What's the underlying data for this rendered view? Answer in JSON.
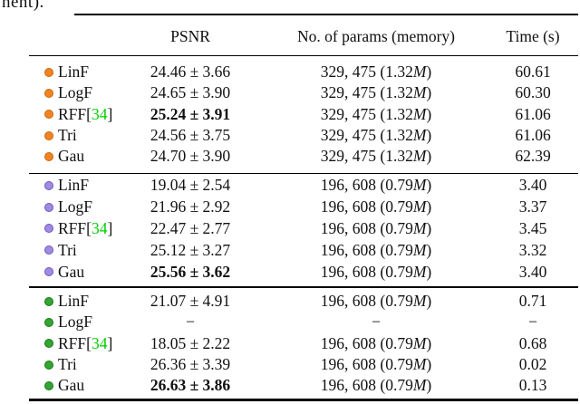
{
  "caption_fragment": "nent).",
  "table": {
    "headers": {
      "psnr": "PSNR",
      "params": "No. of params (memory)",
      "time": "Time (s)"
    },
    "groups": [
      {
        "marker": "orange-dot",
        "marker_fill": "#F28322",
        "marker_edge": "#C9670F",
        "rows": [
          {
            "label": "LinF",
            "cite": null,
            "psnr": "24.46 ± 3.66",
            "psnr_bold": false,
            "params": "329, 475 (1.32M)",
            "time": "60.61"
          },
          {
            "label": "LogF",
            "cite": null,
            "psnr": "24.65 ± 3.90",
            "psnr_bold": false,
            "params": "329, 475 (1.32M)",
            "time": "60.30"
          },
          {
            "label": "RFF",
            "cite": "34",
            "psnr": "25.24 ± 3.91",
            "psnr_bold": true,
            "params": "329, 475 (1.32M)",
            "time": "61.06"
          },
          {
            "label": "Tri",
            "cite": null,
            "psnr": "24.56 ± 3.75",
            "psnr_bold": false,
            "params": "329, 475 (1.32M)",
            "time": "61.06"
          },
          {
            "label": "Gau",
            "cite": null,
            "psnr": "24.70 ± 3.90",
            "psnr_bold": false,
            "params": "329, 475 (1.32M)",
            "time": "62.39"
          }
        ]
      },
      {
        "marker": "purple-dot",
        "marker_fill": "#A08BDE",
        "marker_edge": "#6F55C5",
        "rows": [
          {
            "label": "LinF",
            "cite": null,
            "psnr": "19.04 ± 2.54",
            "psnr_bold": false,
            "params": "196, 608 (0.79M)",
            "time": "3.40"
          },
          {
            "label": "LogF",
            "cite": null,
            "psnr": "21.96 ± 2.92",
            "psnr_bold": false,
            "params": "196, 608 (0.79M)",
            "time": "3.37"
          },
          {
            "label": "RFF",
            "cite": "34",
            "psnr": "22.47 ± 2.77",
            "psnr_bold": false,
            "params": "196, 608 (0.79M)",
            "time": "3.45"
          },
          {
            "label": "Tri",
            "cite": null,
            "psnr": "25.12 ± 3.27",
            "psnr_bold": false,
            "params": "196, 608 (0.79M)",
            "time": "3.32"
          },
          {
            "label": "Gau",
            "cite": null,
            "psnr": "25.56 ± 3.62",
            "psnr_bold": true,
            "params": "196, 608 (0.79M)",
            "time": "3.40"
          }
        ]
      },
      {
        "marker": "green-dot",
        "marker_fill": "#35A435",
        "marker_edge": "#157A15",
        "rows": [
          {
            "label": "LinF",
            "cite": null,
            "psnr": "21.07 ± 4.91",
            "psnr_bold": false,
            "params": "196, 608 (0.79M)",
            "time": "0.71"
          },
          {
            "label": "LogF",
            "cite": null,
            "psnr": "−",
            "psnr_bold": false,
            "params": "−",
            "time": "−"
          },
          {
            "label": "RFF",
            "cite": "34",
            "psnr": "18.05 ± 2.22",
            "psnr_bold": false,
            "params": "196, 608 (0.79M)",
            "time": "0.68"
          },
          {
            "label": "Tri",
            "cite": null,
            "psnr": "26.36 ± 3.39",
            "psnr_bold": false,
            "params": "196, 608 (0.79M)",
            "time": "0.02"
          },
          {
            "label": "Gau",
            "cite": null,
            "psnr": "26.63 ± 3.86",
            "psnr_bold": true,
            "params": "196, 608 (0.79M)",
            "time": "0.13"
          }
        ]
      }
    ]
  },
  "colors": {
    "citation_green": "#00CF00",
    "text": "#111111",
    "rule": "#000000"
  }
}
